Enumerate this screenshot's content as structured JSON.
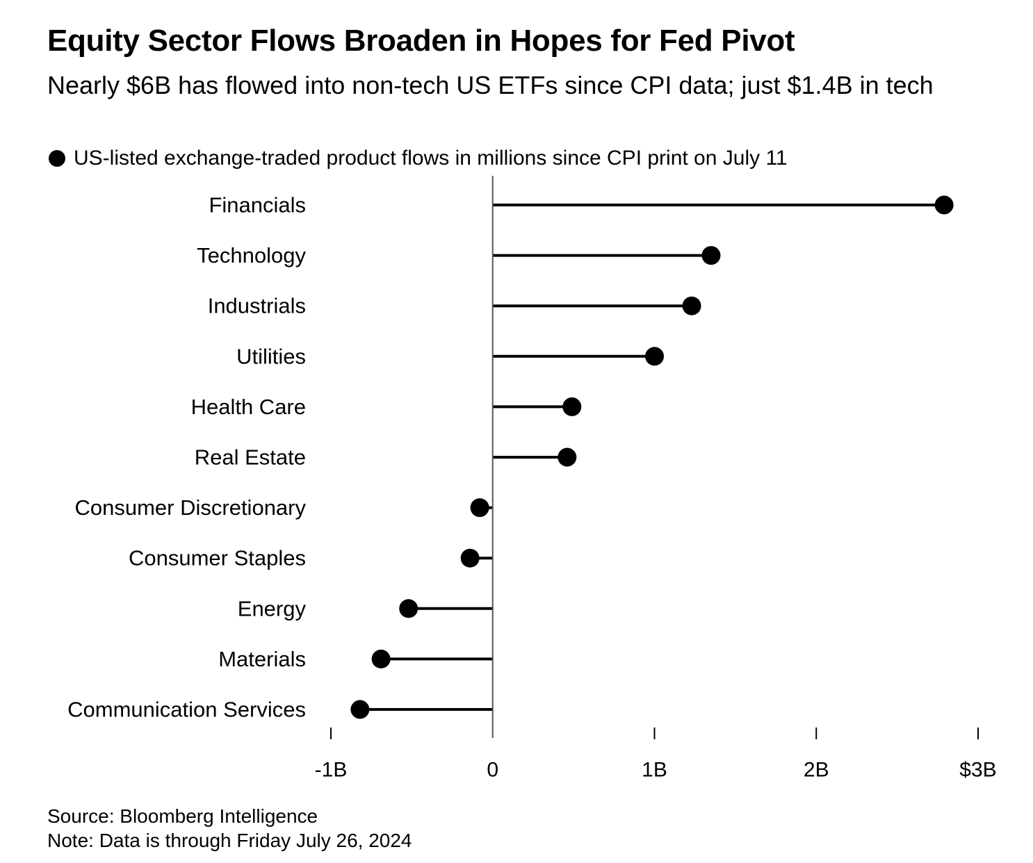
{
  "header": {
    "title": "Equity Sector Flows Broaden in Hopes for Fed Pivot",
    "subtitle": "Nearly $6B has flowed into non-tech US ETFs since CPI data; just $1.4B in tech"
  },
  "legend": {
    "label": "US-listed exchange-traded product flows in millions since CPI print on July 11",
    "marker_color": "#000000"
  },
  "chart_data": {
    "type": "lollipop",
    "orientation": "horizontal",
    "categories": [
      "Financials",
      "Technology",
      "Industrials",
      "Utilities",
      "Health Care",
      "Real Estate",
      "Consumer Discretionary",
      "Consumer Staples",
      "Energy",
      "Materials",
      "Communication Services"
    ],
    "series": [
      {
        "name": "US-listed exchange-traded product flows in millions since CPI print on July 11",
        "values": [
          2790,
          1350,
          1230,
          1000,
          490,
          460,
          -80,
          -140,
          -520,
          -690,
          -820
        ]
      }
    ],
    "xlim": [
      -1000,
      3000
    ],
    "x_ticks": [
      -1000,
      0,
      1000,
      2000,
      3000
    ],
    "x_tick_labels": [
      "-1B",
      "0",
      "1B",
      "2B",
      "$3B"
    ],
    "color": "#000000",
    "grid": false
  },
  "footer": {
    "source": "Source: Bloomberg Intelligence",
    "note": "Note: Data is through Friday July 26, 2024"
  }
}
